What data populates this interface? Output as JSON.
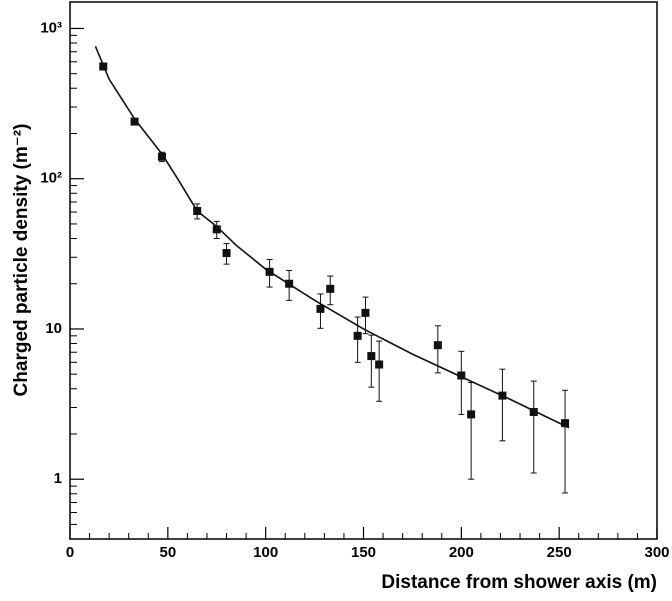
{
  "chart_data": {
    "type": "scatter",
    "x_label": "Distance from shower axis (m)",
    "y_label": "Charged particle density (m⁻²)",
    "xlim": [
      0,
      300
    ],
    "xticks": [
      0,
      50,
      100,
      150,
      200,
      250,
      300
    ],
    "ylim": [
      0.4,
      1500
    ],
    "log_y": true,
    "yticks": [
      1,
      10,
      {
        "value": 100,
        "label": "10²"
      },
      {
        "value": 1000,
        "label": "10³"
      }
    ],
    "points": {
      "color": "#111111",
      "x": [
        17,
        33,
        47,
        65,
        75,
        80,
        102,
        112,
        128,
        133,
        147,
        151,
        154,
        158,
        188,
        200,
        205,
        221,
        237,
        253
      ],
      "values": [
        558,
        240,
        140,
        61,
        46,
        32,
        24,
        20,
        13.6,
        18.5,
        9.0,
        12.8,
        6.6,
        5.8,
        7.8,
        4.9,
        2.7,
        3.6,
        2.8,
        2.36
      ],
      "errors": [
        20,
        10,
        10,
        7,
        6,
        5,
        5,
        4.5,
        3.5,
        4,
        3,
        3.5,
        2.5,
        2.5,
        2.7,
        2.2,
        1.7,
        1.8,
        1.7,
        1.55
      ]
    },
    "fit": {
      "color": "#111111",
      "x": [
        13,
        20,
        33,
        47,
        55,
        65,
        75,
        85,
        100,
        125,
        150,
        175,
        200,
        225,
        255
      ],
      "values": [
        760,
        460,
        250,
        146,
        100,
        61,
        48,
        36,
        25,
        15.5,
        10,
        6.8,
        4.8,
        3.4,
        2.2
      ]
    }
  }
}
